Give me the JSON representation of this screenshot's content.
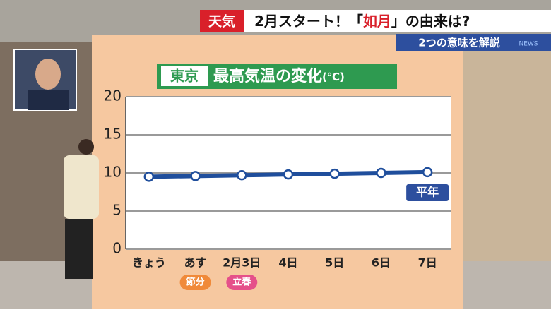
{
  "banner": {
    "tag": "天気",
    "headline": [
      "2月スタート！「",
      "如月",
      "」の由来は?"
    ],
    "subline": "2つの意味を解説",
    "logo": "NEWS"
  },
  "chart_data": {
    "type": "line",
    "title_badge": "東京",
    "title": "最高気温の変化",
    "title_unit": "(℃)",
    "categories": [
      "きょう",
      "あす",
      "2月3日",
      "4日",
      "5日",
      "6日",
      "7日"
    ],
    "values": [
      9.5,
      9.6,
      9.7,
      9.8,
      9.9,
      10.0,
      10.1
    ],
    "color": "#1f4e9c",
    "ylim": [
      0,
      20
    ],
    "yticks": [
      0,
      5,
      10,
      15,
      20
    ],
    "grid": true,
    "annotations": [
      "平年",
      "節分",
      "立春"
    ]
  }
}
